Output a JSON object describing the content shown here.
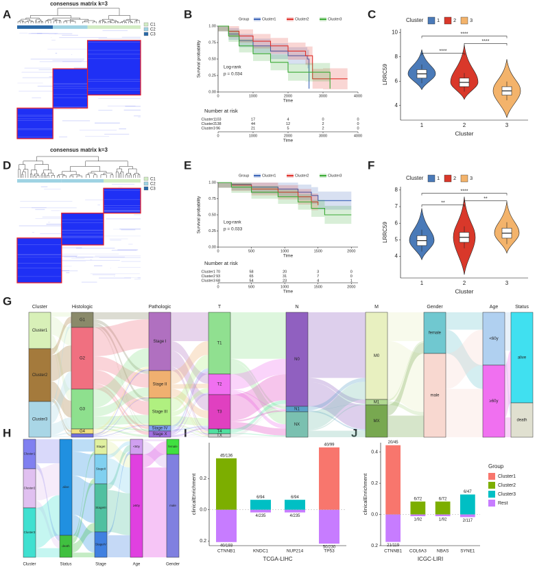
{
  "panels": {
    "A": {
      "label": "A",
      "title": "consensus matrix k=3",
      "legend": [
        "C1",
        "C2",
        "C3"
      ]
    },
    "B": {
      "label": "B",
      "type": "line",
      "legend_title": "Group",
      "series": [
        {
          "name": "Cluster1",
          "color": "#3a63b8",
          "x": [
            0,
            300,
            600,
            1000,
            1500,
            2000,
            2550,
            2600
          ],
          "values": [
            1,
            0.88,
            0.78,
            0.7,
            0.62,
            0.55,
            0.5,
            0.05
          ]
        },
        {
          "name": "Cluster2",
          "color": "#e0302a",
          "x": [
            0,
            300,
            600,
            1000,
            1500,
            2000,
            2500,
            2700,
            3000,
            3700
          ],
          "values": [
            1,
            0.92,
            0.85,
            0.77,
            0.7,
            0.62,
            0.55,
            0.2,
            0.2,
            0.2
          ]
        },
        {
          "name": "Cluster3",
          "color": "#3aaa35",
          "x": [
            0,
            300,
            600,
            1000,
            1500,
            2000,
            2500,
            3200
          ],
          "values": [
            1,
            0.85,
            0.7,
            0.58,
            0.45,
            0.3,
            0.3,
            0.05
          ]
        }
      ],
      "xlabel": "Time",
      "ylabel": "Survival probability",
      "xlim": [
        0,
        4000
      ],
      "ylim": [
        0,
        1
      ],
      "xticks": [
        0,
        1000,
        2000,
        3000,
        4000
      ],
      "yticks": [
        {
          "value": 0,
          "label": "0.00"
        },
        {
          "value": 0.25,
          "label": "0.25"
        },
        {
          "value": 0.5,
          "label": "0.50"
        },
        {
          "value": 0.75,
          "label": "0.75"
        },
        {
          "value": 1,
          "label": "1.00"
        }
      ],
      "annotations": [
        "Log-rank",
        "p = 0.034"
      ],
      "risk_title": "Number at risk",
      "risk": [
        {
          "name": "Cluster1",
          "values": [
            103,
            17,
            4,
            0,
            0
          ]
        },
        {
          "name": "Cluster2",
          "values": [
            138,
            44,
            12,
            2,
            0
          ]
        },
        {
          "name": "Cluster3",
          "values": [
            96,
            21,
            5,
            2,
            0
          ]
        }
      ]
    },
    "C": {
      "label": "C",
      "type": "violin",
      "legend_title": "Cluster",
      "categories": [
        "1",
        "2",
        "3"
      ],
      "colors": [
        "#4a7ab8",
        "#d9382a",
        "#f3b36b"
      ],
      "values": [
        6.6,
        5.9,
        5.2
      ],
      "ylabel": "LRRC59",
      "xlabel": "Cluster",
      "ylim": [
        2.8,
        10.3
      ],
      "yticks": [
        4,
        6,
        8,
        10
      ],
      "significance": [
        "****",
        "****",
        "****"
      ]
    },
    "D": {
      "label": "D",
      "title": "consensus matrix k=3",
      "legend": [
        "C1",
        "C2",
        "C3"
      ]
    },
    "E": {
      "label": "E",
      "type": "line",
      "legend_title": "Group",
      "series": [
        {
          "name": "Cluster1",
          "color": "#3a63b8",
          "x": [
            0,
            200,
            500,
            900,
            1200,
            1400,
            1500,
            2000
          ],
          "values": [
            1,
            0.97,
            0.93,
            0.9,
            0.85,
            0.8,
            0.72,
            0.72
          ]
        },
        {
          "name": "Cluster2",
          "color": "#e0302a",
          "x": [
            0,
            200,
            500,
            900,
            1200,
            1400,
            1500
          ],
          "values": [
            1,
            0.96,
            0.9,
            0.85,
            0.78,
            0.7,
            0.65
          ]
        },
        {
          "name": "Cluster3",
          "color": "#3aaa35",
          "x": [
            0,
            200,
            500,
            900,
            1200,
            1400,
            1600,
            2000
          ],
          "values": [
            1,
            0.93,
            0.85,
            0.78,
            0.7,
            0.6,
            0.5,
            0.5
          ]
        }
      ],
      "xlabel": "Time",
      "ylabel": "Survival probability",
      "xlim": [
        0,
        2100
      ],
      "ylim": [
        0,
        1
      ],
      "xticks": [
        0,
        500,
        1000,
        1500,
        2000
      ],
      "yticks": [
        {
          "value": 0,
          "label": "0.00"
        },
        {
          "value": 0.25,
          "label": "0.25"
        },
        {
          "value": 0.5,
          "label": "0.50"
        },
        {
          "value": 0.75,
          "label": "0.75"
        },
        {
          "value": 1,
          "label": "1.00"
        }
      ],
      "annotations": [
        "Log-rank",
        "p = 0.033"
      ],
      "risk_title": "Number at risk",
      "risk": [
        {
          "name": "Cluster1",
          "values": [
            70,
            58,
            20,
            3,
            0
          ]
        },
        {
          "name": "Cluster2",
          "values": [
            93,
            65,
            31,
            7,
            0
          ]
        },
        {
          "name": "Cluster3",
          "values": [
            68,
            54,
            23,
            4,
            1
          ]
        }
      ]
    },
    "F": {
      "label": "F",
      "type": "violin",
      "legend_title": "Cluster",
      "categories": [
        "1",
        "2",
        "3"
      ],
      "colors": [
        "#4a7ab8",
        "#d9382a",
        "#f3b36b"
      ],
      "values": [
        4.95,
        5.15,
        5.4
      ],
      "ylabel": "LRRC59",
      "xlabel": "Cluster",
      "ylim": [
        2.7,
        8.2
      ],
      "yticks": [
        4,
        5,
        6,
        7,
        8
      ],
      "significance": [
        "**",
        "****",
        "**"
      ]
    },
    "G": {
      "label": "G",
      "columns": [
        {
          "name": "Cluster",
          "nodes": [
            "Cluster1",
            "Cluster2",
            "Cluster3"
          ]
        },
        {
          "name": "Histologic",
          "nodes": [
            "G1",
            "G2",
            "G3",
            "G4"
          ]
        },
        {
          "name": "Pathologic",
          "nodes": [
            "Stage I",
            "Stage II",
            "Stage III",
            "Stage IV",
            "Stage X"
          ]
        },
        {
          "name": "T",
          "nodes": [
            "T1",
            "T2",
            "T3",
            "T4",
            "TX"
          ]
        },
        {
          "name": "N",
          "nodes": [
            "N0",
            "N1",
            "NX"
          ]
        },
        {
          "name": "M",
          "nodes": [
            "M0",
            "M1",
            "MX"
          ]
        },
        {
          "name": "Gender",
          "nodes": [
            "female",
            "male"
          ]
        },
        {
          "name": "Age",
          "nodes": [
            "<60y",
            "≥60y"
          ]
        },
        {
          "name": "Status",
          "nodes": [
            "alive",
            "death"
          ]
        }
      ]
    },
    "H": {
      "label": "H",
      "columns": [
        {
          "name": "Cluster",
          "nodes": [
            "Cluster1",
            "Cluster2",
            "Cluster3"
          ]
        },
        {
          "name": "Status",
          "nodes": [
            "alive",
            "death"
          ]
        },
        {
          "name": "Stage",
          "nodes": [
            "StageI",
            "StageII",
            "StageIII",
            "StageIV"
          ]
        },
        {
          "name": "Age",
          "nodes": [
            "<60y",
            "≥60y"
          ]
        },
        {
          "name": "Gender",
          "nodes": [
            "female",
            "male"
          ]
        }
      ]
    },
    "I": {
      "label": "I",
      "type": "bar",
      "categories": [
        "CTNNB1",
        "KNDC1",
        "NUP214",
        "TP53"
      ],
      "xlabel": "TCGA-LIHC",
      "ylabel": "clinicalEnrichment",
      "ylim": [
        -0.23,
        0.43
      ],
      "yticks": [
        {
          "value": 0.2,
          "label": "0.2"
        },
        {
          "value": 0,
          "label": "0.0"
        },
        {
          "value": -0.2,
          "label": "0.2"
        }
      ],
      "series": [
        {
          "name": "Cluster1",
          "color": "#f8766d",
          "values": [
            null,
            null,
            null,
            0.4
          ],
          "value_labels": [
            null,
            null,
            null,
            "40/99"
          ]
        },
        {
          "name": "Cluster2",
          "color": "#7cae00",
          "values": [
            0.33,
            null,
            null,
            null
          ],
          "value_labels": [
            "45/136",
            null,
            null,
            null
          ]
        },
        {
          "name": "Cluster3",
          "color": "#00bfc4",
          "values": [
            null,
            0.064,
            0.064,
            null
          ],
          "value_labels": [
            null,
            "6/94",
            "6/94",
            null
          ]
        },
        {
          "name": "Rest",
          "color": "#c77cff",
          "values": [
            -0.207,
            -0.017,
            -0.017,
            -0.217
          ],
          "value_labels": [
            "40/193",
            "4/235",
            "4/235",
            "50/230"
          ]
        }
      ]
    },
    "J": {
      "label": "J",
      "type": "bar",
      "categories": [
        "CTNNB1",
        "COL6A3",
        "NBAS",
        "SYNE1"
      ],
      "xlabel": "ICGC-LIRI",
      "ylabel": "clinicalEnrichment",
      "legend_title": "Group",
      "ylim": [
        -0.2,
        0.46
      ],
      "yticks": [
        {
          "value": 0.4,
          "label": "0.4"
        },
        {
          "value": 0.2,
          "label": "0.2"
        },
        {
          "value": 0,
          "label": "0.0"
        },
        {
          "value": -0.2,
          "label": "0.2"
        }
      ],
      "series": [
        {
          "name": "Cluster1",
          "color": "#f8766d",
          "values": [
            0.444,
            null,
            null,
            null
          ],
          "value_labels": [
            "20/45",
            null,
            null,
            null
          ]
        },
        {
          "name": "Cluster2",
          "color": "#7cae00",
          "values": [
            null,
            0.083,
            0.083,
            null
          ],
          "value_labels": [
            null,
            "6/72",
            "6/72",
            null
          ]
        },
        {
          "name": "Cluster3",
          "color": "#00bfc4",
          "values": [
            null,
            null,
            null,
            0.128
          ],
          "value_labels": [
            null,
            null,
            null,
            "6/47"
          ]
        },
        {
          "name": "Rest",
          "color": "#c77cff",
          "values": [
            -0.176,
            -0.011,
            -0.011,
            -0.017
          ],
          "value_labels": [
            "21/119",
            "1/92",
            "1/92",
            "2/117"
          ]
        }
      ]
    }
  }
}
